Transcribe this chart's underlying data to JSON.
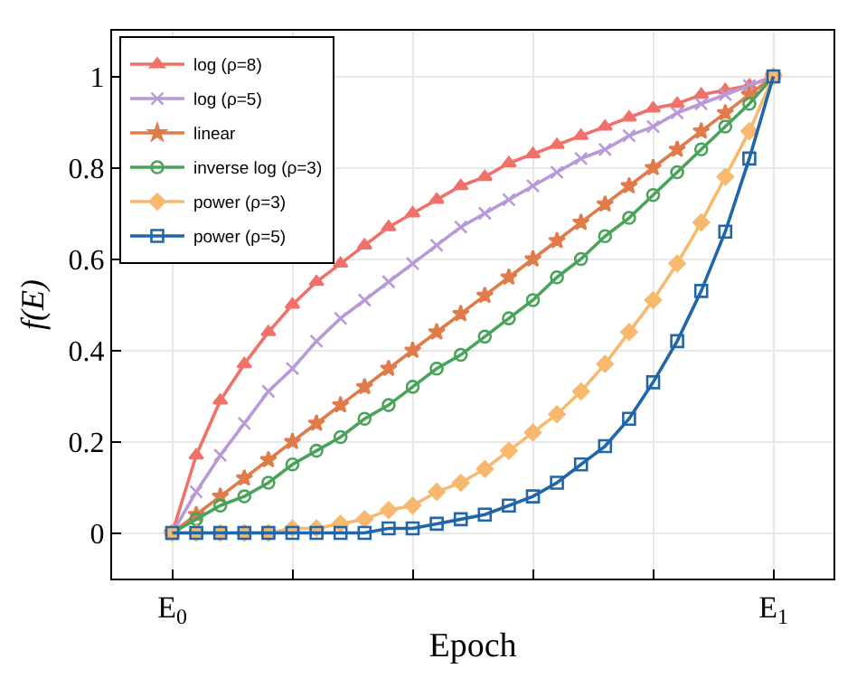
{
  "chart_data": {
    "type": "line",
    "xlabel": "Epoch",
    "ylabel": "f(E)",
    "categories": [
      "E$_{0}$",
      null,
      null,
      null,
      null,
      null,
      null,
      null,
      null,
      null,
      null,
      null,
      null,
      null,
      null,
      null,
      null,
      null,
      null,
      null,
      null,
      null,
      null,
      null,
      null,
      "E$_{1}$"
    ],
    "ylim": [
      -0.1,
      1.1
    ],
    "yticks": [
      0,
      {
        "value": 0.2,
        "label": "0.2"
      },
      {
        "value": 0.4,
        "label": "0.4"
      },
      {
        "value": 0.6,
        "label": "0.6"
      },
      {
        "value": 0.8,
        "label": "0.8"
      },
      1
    ],
    "grid": true,
    "legend": "top left",
    "line_style": "solid",
    "series": [
      {
        "name": "log (ρ=8)",
        "color": "#f0716a",
        "marker": "triangle",
        "values": [
          0,
          0.17,
          0.29,
          0.37,
          0.44,
          0.5,
          0.55,
          0.59,
          0.63,
          0.67,
          0.7,
          0.73,
          0.76,
          0.78,
          0.81,
          0.83,
          0.85,
          0.87,
          0.89,
          0.91,
          0.93,
          0.94,
          0.96,
          0.97,
          0.98,
          1
        ]
      },
      {
        "name": "log (ρ=5)",
        "color": "#b99ad9",
        "marker": "cross",
        "values": [
          0,
          0.09,
          0.17,
          0.24,
          0.31,
          0.36,
          0.42,
          0.47,
          0.51,
          0.55,
          0.59,
          0.63,
          0.67,
          0.7,
          0.73,
          0.76,
          0.79,
          0.82,
          0.84,
          0.87,
          0.89,
          0.92,
          0.94,
          0.96,
          0.98,
          1
        ]
      },
      {
        "name": "linear",
        "color": "#e07b4a",
        "marker": "star",
        "values": [
          0,
          0.04,
          0.08,
          0.12,
          0.16,
          0.2,
          0.24,
          0.28,
          0.32,
          0.36,
          0.4,
          0.44,
          0.48,
          0.52,
          0.56,
          0.6,
          0.64,
          0.68,
          0.72,
          0.76,
          0.8,
          0.84,
          0.88,
          0.92,
          0.96,
          1
        ]
      },
      {
        "name": "inverse log (ρ=3)",
        "color": "#4aa35a",
        "marker": "circle",
        "values": [
          0,
          0.03,
          0.06,
          0.08,
          0.11,
          0.15,
          0.18,
          0.21,
          0.25,
          0.28,
          0.32,
          0.36,
          0.39,
          0.43,
          0.47,
          0.51,
          0.56,
          0.6,
          0.65,
          0.69,
          0.74,
          0.79,
          0.84,
          0.89,
          0.94,
          1
        ]
      },
      {
        "name": "power (ρ=3)",
        "color": "#f7b96e",
        "marker": "diamond",
        "values": [
          0,
          0,
          0,
          0,
          0,
          0.01,
          0.01,
          0.02,
          0.03,
          0.05,
          0.06,
          0.09,
          0.11,
          0.14,
          0.18,
          0.22,
          0.26,
          0.31,
          0.37,
          0.44,
          0.51,
          0.59,
          0.68,
          0.78,
          0.88,
          1
        ]
      },
      {
        "name": "power (ρ=5)",
        "color": "#2166a8",
        "marker": "square",
        "values": [
          0,
          0,
          0,
          0,
          0,
          0,
          0,
          0,
          0,
          0.01,
          0.01,
          0.02,
          0.03,
          0.04,
          0.06,
          0.08,
          0.11,
          0.15,
          0.19,
          0.25,
          0.33,
          0.42,
          0.53,
          0.66,
          0.82,
          1
        ]
      }
    ]
  }
}
